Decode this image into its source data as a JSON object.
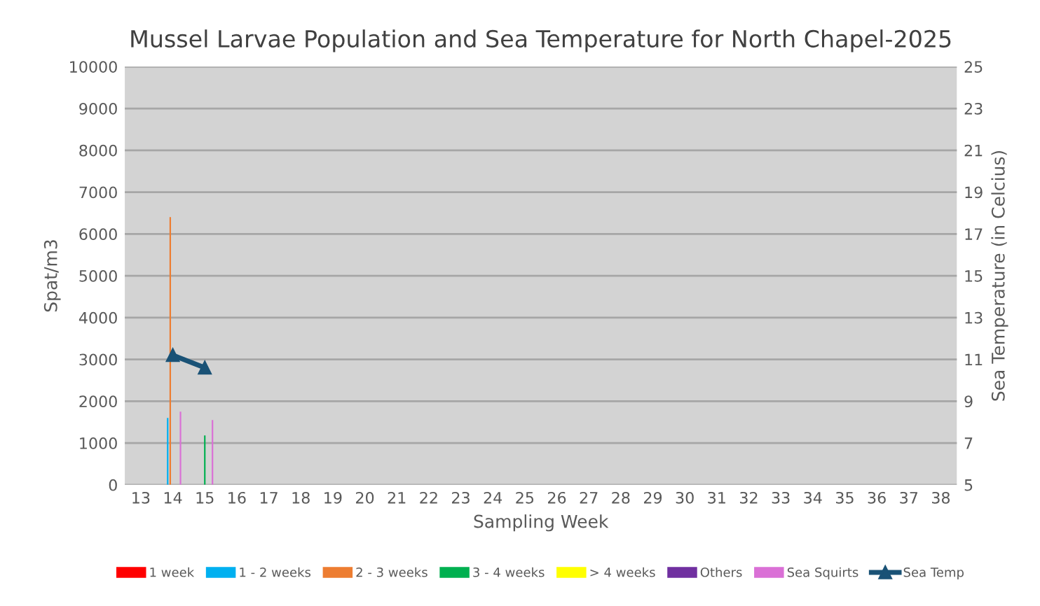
{
  "chart_data": {
    "type": "bar",
    "title": "Mussel Larvae Population and Sea Temperature for North Chapel-2025",
    "xlabel": "Sampling Week",
    "ylabel": "Spat/m3",
    "y2label": "Sea Temperature (in Celcius)",
    "categories": [
      "13",
      "14",
      "15",
      "16",
      "17",
      "18",
      "19",
      "20",
      "21",
      "22",
      "23",
      "24",
      "25",
      "26",
      "27",
      "28",
      "29",
      "30",
      "31",
      "32",
      "33",
      "34",
      "35",
      "36",
      "37",
      "38"
    ],
    "series": [
      {
        "name": "1 week",
        "color": "#ff0000",
        "values": [
          null,
          null,
          null,
          null,
          null,
          null,
          null,
          null,
          null,
          null,
          null,
          null,
          null,
          null,
          null,
          null,
          null,
          null,
          null,
          null,
          null,
          null,
          null,
          null,
          null,
          null
        ]
      },
      {
        "name": "1 - 2 weeks",
        "color": "#00b0f0",
        "values": [
          null,
          1600,
          null,
          null,
          null,
          null,
          null,
          null,
          null,
          null,
          null,
          null,
          null,
          null,
          null,
          null,
          null,
          null,
          null,
          null,
          null,
          null,
          null,
          null,
          null,
          null
        ]
      },
      {
        "name": "2 - 3 weeks",
        "color": "#ed7d31",
        "values": [
          null,
          6400,
          null,
          null,
          null,
          null,
          null,
          null,
          null,
          null,
          null,
          null,
          null,
          null,
          null,
          null,
          null,
          null,
          null,
          null,
          null,
          null,
          null,
          null,
          null,
          null
        ]
      },
      {
        "name": "3 - 4 weeks",
        "color": "#00b050",
        "values": [
          null,
          null,
          1180,
          null,
          null,
          null,
          null,
          null,
          null,
          null,
          null,
          null,
          null,
          null,
          null,
          null,
          null,
          null,
          null,
          null,
          null,
          null,
          null,
          null,
          null,
          null
        ]
      },
      {
        "name": "> 4 weeks",
        "color": "#ffff00",
        "values": [
          null,
          null,
          null,
          null,
          null,
          null,
          null,
          null,
          null,
          null,
          null,
          null,
          null,
          null,
          null,
          null,
          null,
          null,
          null,
          null,
          null,
          null,
          null,
          null,
          null,
          null
        ]
      },
      {
        "name": "Others",
        "color": "#7030a0",
        "values": [
          null,
          null,
          null,
          null,
          null,
          null,
          null,
          null,
          null,
          null,
          null,
          null,
          null,
          null,
          null,
          null,
          null,
          null,
          null,
          null,
          null,
          null,
          null,
          null,
          null,
          null
        ]
      },
      {
        "name": "Sea Squirts",
        "color": "#da70d6",
        "values": [
          null,
          1750,
          1550,
          null,
          null,
          null,
          null,
          null,
          null,
          null,
          null,
          null,
          null,
          null,
          null,
          null,
          null,
          null,
          null,
          null,
          null,
          null,
          null,
          null,
          null,
          null
        ]
      },
      {
        "name": "Sea Temp",
        "color": "#1a5276",
        "type": "line",
        "axis": "y2",
        "marker": "triangle",
        "values": [
          null,
          11.2,
          10.6,
          null,
          null,
          null,
          null,
          null,
          null,
          null,
          null,
          null,
          null,
          null,
          null,
          null,
          null,
          null,
          null,
          null,
          null,
          null,
          null,
          null,
          null,
          null
        ]
      }
    ],
    "ylim": [
      0,
      10000
    ],
    "yticks": [
      0,
      1000,
      2000,
      3000,
      4000,
      5000,
      6000,
      7000,
      8000,
      9000,
      10000
    ],
    "y2lim": [
      5,
      25
    ],
    "y2ticks": [
      5,
      7,
      9,
      11,
      13,
      15,
      17,
      19,
      21,
      23,
      25
    ],
    "grid": "y",
    "legend": "bottom"
  }
}
